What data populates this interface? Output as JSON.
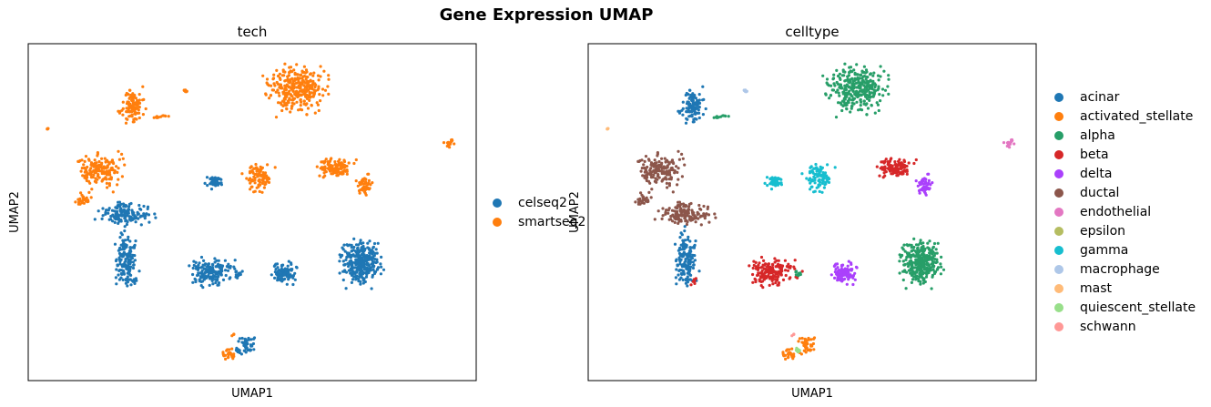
{
  "chart_data": {
    "title": "Gene Expression UMAP",
    "panels": [
      {
        "type": "scatter",
        "title": "tech",
        "xlabel": "UMAP1",
        "ylabel": "UMAP2",
        "legend_position": "right",
        "series": [
          {
            "name": "celseq2",
            "color": "#1f77b4"
          },
          {
            "name": "smartseq2",
            "color": "#ff7f0e"
          }
        ]
      },
      {
        "type": "scatter",
        "title": "celltype",
        "xlabel": "UMAP1",
        "ylabel": "UMAP2",
        "legend_position": "right",
        "series": [
          {
            "name": "acinar",
            "color": "#1f77b4"
          },
          {
            "name": "activated_stellate",
            "color": "#ff7f0e"
          },
          {
            "name": "alpha",
            "color": "#279e68"
          },
          {
            "name": "beta",
            "color": "#d62728"
          },
          {
            "name": "delta",
            "color": "#aa40fc"
          },
          {
            "name": "ductal",
            "color": "#8c564b"
          },
          {
            "name": "endothelial",
            "color": "#e377c2"
          },
          {
            "name": "epsilon",
            "color": "#b5bd61"
          },
          {
            "name": "gamma",
            "color": "#17becf"
          },
          {
            "name": "macrophage",
            "color": "#aec7e8"
          },
          {
            "name": "mast",
            "color": "#ffbb78"
          },
          {
            "name": "quiescent_stellate",
            "color": "#98df8a"
          },
          {
            "name": "schwann",
            "color": "#ff9896"
          }
        ]
      }
    ]
  }
}
